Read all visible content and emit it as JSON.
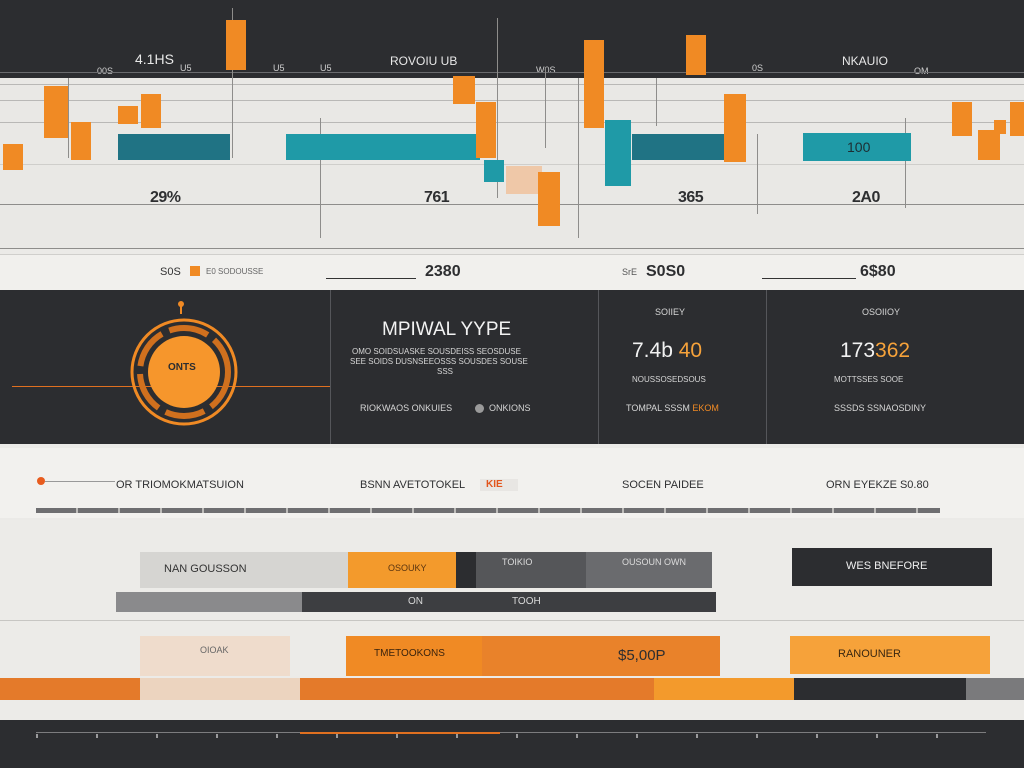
{
  "header": {
    "labels": [
      "4.1HS",
      "00S",
      "U5",
      "U5",
      "U5",
      "ROVOIU UB",
      "I25K",
      "W0S",
      "0S",
      "NKAUIO",
      "OM"
    ]
  },
  "chart": {
    "value_labels": [
      "29%",
      "761",
      "365",
      "2A0"
    ],
    "teal_label": "100",
    "strip": {
      "left_label": "S0S",
      "left_sub": "E0 SODOUSSE",
      "values": [
        "2380",
        "S0S0",
        "6$80"
      ],
      "mid_prefix": "SrE"
    }
  },
  "panel": {
    "gauge_label": "ONTS",
    "title": "MPIWAL YYPE",
    "description_1": "OMO SOIDSUASKE SOUSDEISS SEOSDUSE",
    "description_2": "SEE SOIDS DUSNSEEOSSS SOUSDES SOUSE",
    "description_3": "SSS",
    "footer_left": "RIOKWAOS ONKUIES",
    "footer_right": "ONKIONS",
    "kpi1": {
      "caption": "SOIIEY",
      "value": "7.4b",
      "value_accent": "40",
      "sub": "NOUSSOSEDSOUS",
      "link": "TOMPAL SSSM",
      "link_accent": "EKOM"
    },
    "kpi2": {
      "caption": "OSOIIOY",
      "value": "173",
      "value_accent": "362",
      "sub": "MOTTSSES SOOE",
      "link": "SSSDS SSNAOSDINY"
    }
  },
  "filters": {
    "items": [
      "OR TRIOMOKMATSUION",
      "BSNN AVETOTOKEL",
      "KIE",
      "SOCEN PAIDEE",
      "ORN EYEKZE S0.80"
    ]
  },
  "bottom": {
    "row1": [
      "NAN GOUSSON",
      "OSOUKY",
      "TOIKIO",
      "OUSOUN OWN"
    ],
    "row1_right": "WES BNEFORE",
    "row2": [
      "ON",
      "TOOH"
    ],
    "row3": [
      "OIOAK",
      "TMETOOKONS",
      "$5,00P"
    ],
    "row3_right": "RANOUNER"
  },
  "colors": {
    "accent": "#f08a24",
    "teal": "#1f9aa7",
    "dark": "#2c2d30"
  }
}
